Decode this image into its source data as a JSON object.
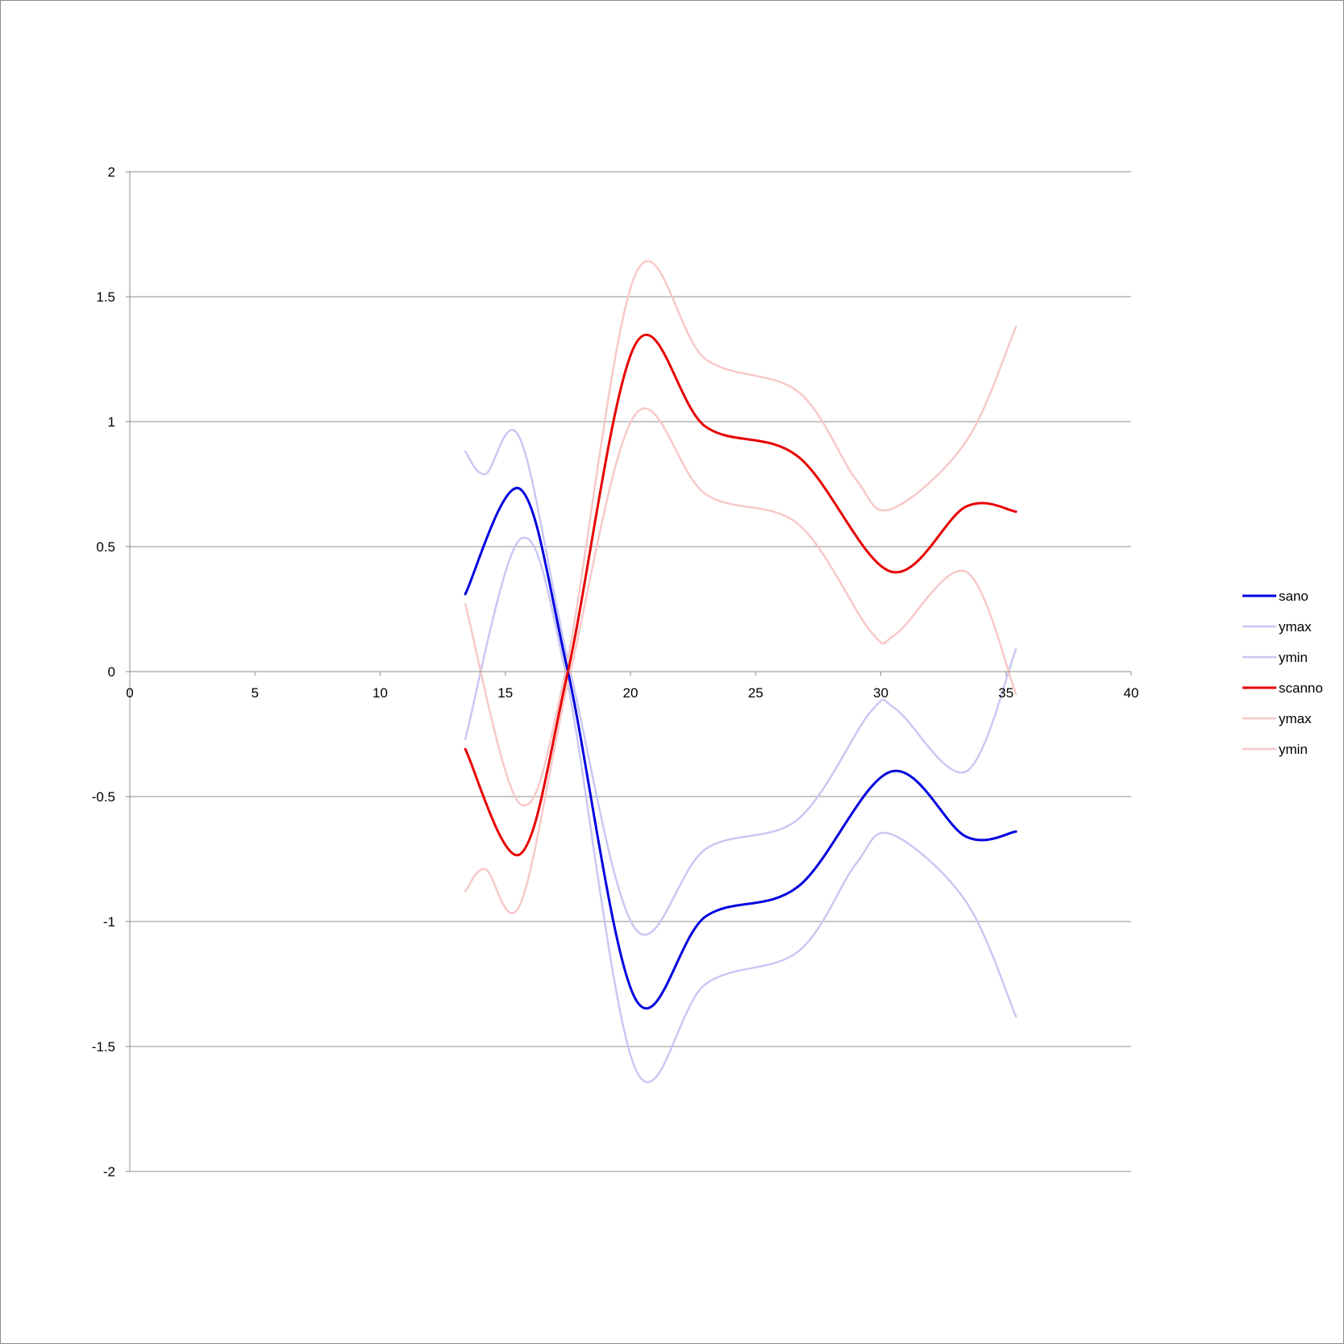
{
  "chart_data": {
    "type": "line",
    "title": "",
    "xlabel": "",
    "ylabel": "",
    "xlim": [
      0,
      40
    ],
    "ylim": [
      -2,
      2
    ],
    "x_ticks": [
      0,
      5,
      10,
      15,
      20,
      25,
      30,
      35,
      40
    ],
    "x_tick_labels": [
      "0",
      "5",
      "10",
      "15",
      "20",
      "25",
      "30",
      "35",
      "40"
    ],
    "y_ticks": [
      2,
      1.5,
      1,
      0.5,
      0,
      -0.5,
      -1,
      -1.5,
      -2
    ],
    "y_tick_labels": [
      "2",
      "1.5",
      "1",
      "0.5",
      "0",
      "-0.5",
      "-1",
      "-1.5",
      "-2"
    ],
    "grid": "horizontal",
    "legend_position": "right",
    "series": [
      {
        "name": "sano",
        "color": "#0000e0",
        "role": "main",
        "points": [
          [
            13.4,
            0.31
          ],
          [
            15.6,
            0.73
          ],
          [
            17.5,
            0.0
          ],
          [
            20.2,
            -1.31
          ],
          [
            23.0,
            -0.98
          ],
          [
            26.7,
            -0.86
          ],
          [
            30.4,
            -0.4
          ],
          [
            33.4,
            -0.66
          ],
          [
            35.4,
            -0.64
          ]
        ]
      },
      {
        "name": "ymax",
        "color": "#c8c8f4",
        "role": "band",
        "points": [
          [
            13.4,
            0.88
          ],
          [
            14.2,
            0.79
          ],
          [
            15.6,
            0.93
          ],
          [
            17.6,
            0.0
          ],
          [
            20.2,
            -1.03
          ],
          [
            23.0,
            -0.71
          ],
          [
            26.7,
            -0.59
          ],
          [
            29.6,
            -0.16
          ],
          [
            30.6,
            -0.15
          ],
          [
            33.4,
            -0.4
          ],
          [
            35.4,
            0.09
          ]
        ]
      },
      {
        "name": "ymin",
        "color": "#c8c8f4",
        "role": "band",
        "points": [
          [
            13.4,
            -0.27
          ],
          [
            15.6,
            0.53
          ],
          [
            17.4,
            0.0
          ],
          [
            20.2,
            -1.59
          ],
          [
            23.0,
            -1.25
          ],
          [
            26.7,
            -1.12
          ],
          [
            29.0,
            -0.77
          ],
          [
            30.4,
            -0.65
          ],
          [
            33.4,
            -0.92
          ],
          [
            35.4,
            -1.38
          ]
        ]
      },
      {
        "name": "scanno",
        "color": "#e80000",
        "role": "main",
        "points": [
          [
            13.4,
            -0.31
          ],
          [
            15.6,
            -0.73
          ],
          [
            17.5,
            0.0
          ],
          [
            20.2,
            1.31
          ],
          [
            23.0,
            0.98
          ],
          [
            26.7,
            0.86
          ],
          [
            30.4,
            0.4
          ],
          [
            33.4,
            0.66
          ],
          [
            35.4,
            0.64
          ]
        ]
      },
      {
        "name": "ymax",
        "color": "#f8c8c8",
        "role": "band",
        "points": [
          [
            13.4,
            0.27
          ],
          [
            15.6,
            -0.53
          ],
          [
            17.4,
            0.0
          ],
          [
            20.2,
            1.59
          ],
          [
            23.0,
            1.25
          ],
          [
            26.7,
            1.12
          ],
          [
            29.0,
            0.77
          ],
          [
            30.4,
            0.65
          ],
          [
            33.4,
            0.92
          ],
          [
            35.4,
            1.38
          ]
        ]
      },
      {
        "name": "ymin",
        "color": "#f8c8c8",
        "role": "band",
        "points": [
          [
            13.4,
            -0.88
          ],
          [
            14.2,
            -0.79
          ],
          [
            15.6,
            -0.93
          ],
          [
            17.6,
            0.0
          ],
          [
            20.2,
            1.03
          ],
          [
            23.0,
            0.71
          ],
          [
            26.7,
            0.59
          ],
          [
            29.6,
            0.16
          ],
          [
            30.6,
            0.15
          ],
          [
            33.4,
            0.4
          ],
          [
            35.4,
            -0.09
          ]
        ]
      }
    ]
  }
}
